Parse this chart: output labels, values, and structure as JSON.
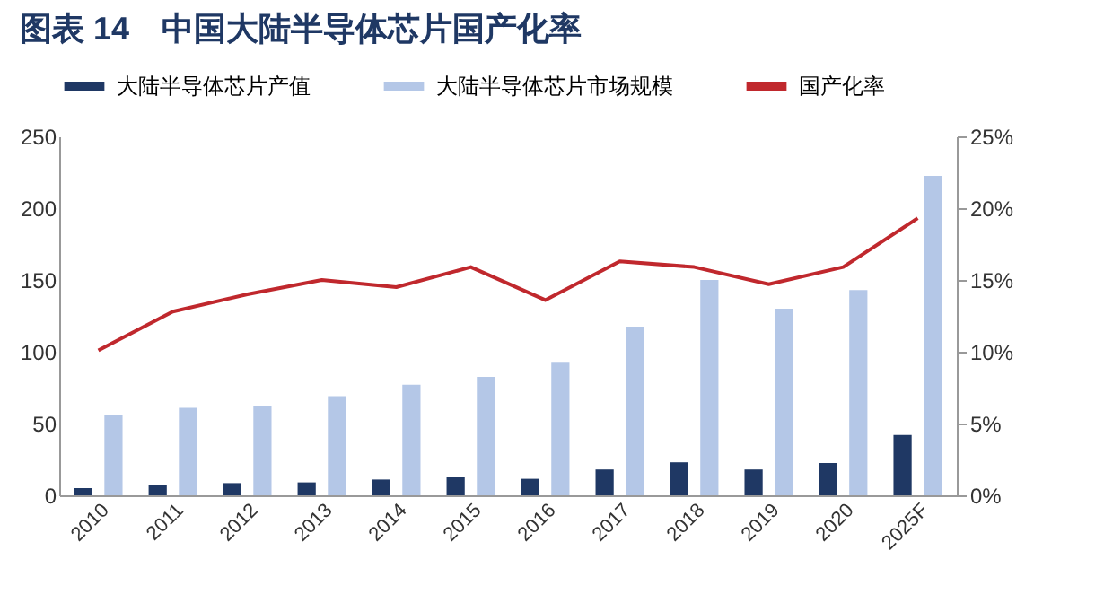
{
  "chart_data": {
    "type": "bar",
    "title": "图表 14　中国大陆半导体芯片国产化率",
    "categories": [
      "2010",
      "2011",
      "2012",
      "2013",
      "2014",
      "2015",
      "2016",
      "2017",
      "2018",
      "2019",
      "2020",
      "2025F"
    ],
    "series": [
      {
        "name": "大陆半导体芯片产值",
        "color": "#1f3864",
        "values": [
          5,
          7.5,
          8.5,
          9,
          11,
          12.5,
          11.5,
          18,
          23,
          18,
          22.5,
          42
        ]
      },
      {
        "name": "大陆半导体芯片市场规模",
        "color": "#b4c7e7",
        "values": [
          56,
          61,
          62.5,
          69,
          77,
          82.5,
          93,
          117.5,
          150,
          130,
          143,
          222.5
        ]
      },
      {
        "name": "国产化率",
        "color": "#c0282d",
        "type": "line",
        "axis": "y2",
        "values": [
          10.1,
          12.8,
          14.0,
          15.0,
          14.5,
          15.9,
          13.6,
          16.3,
          15.9,
          14.7,
          15.9,
          19.3
        ]
      }
    ],
    "ylim": [
      0,
      250
    ],
    "yticks": [
      0,
      50,
      100,
      150,
      200,
      250
    ],
    "y2lim": [
      0,
      25
    ],
    "y2ticks": [
      {
        "value": 0,
        "label": "0%"
      },
      {
        "value": 5,
        "label": "5%"
      },
      {
        "value": 10,
        "label": "10%"
      },
      {
        "value": 15,
        "label": "15%"
      },
      {
        "value": 20,
        "label": "20%"
      },
      {
        "value": 25,
        "label": "25%"
      }
    ],
    "legend": "top",
    "grid": false
  }
}
